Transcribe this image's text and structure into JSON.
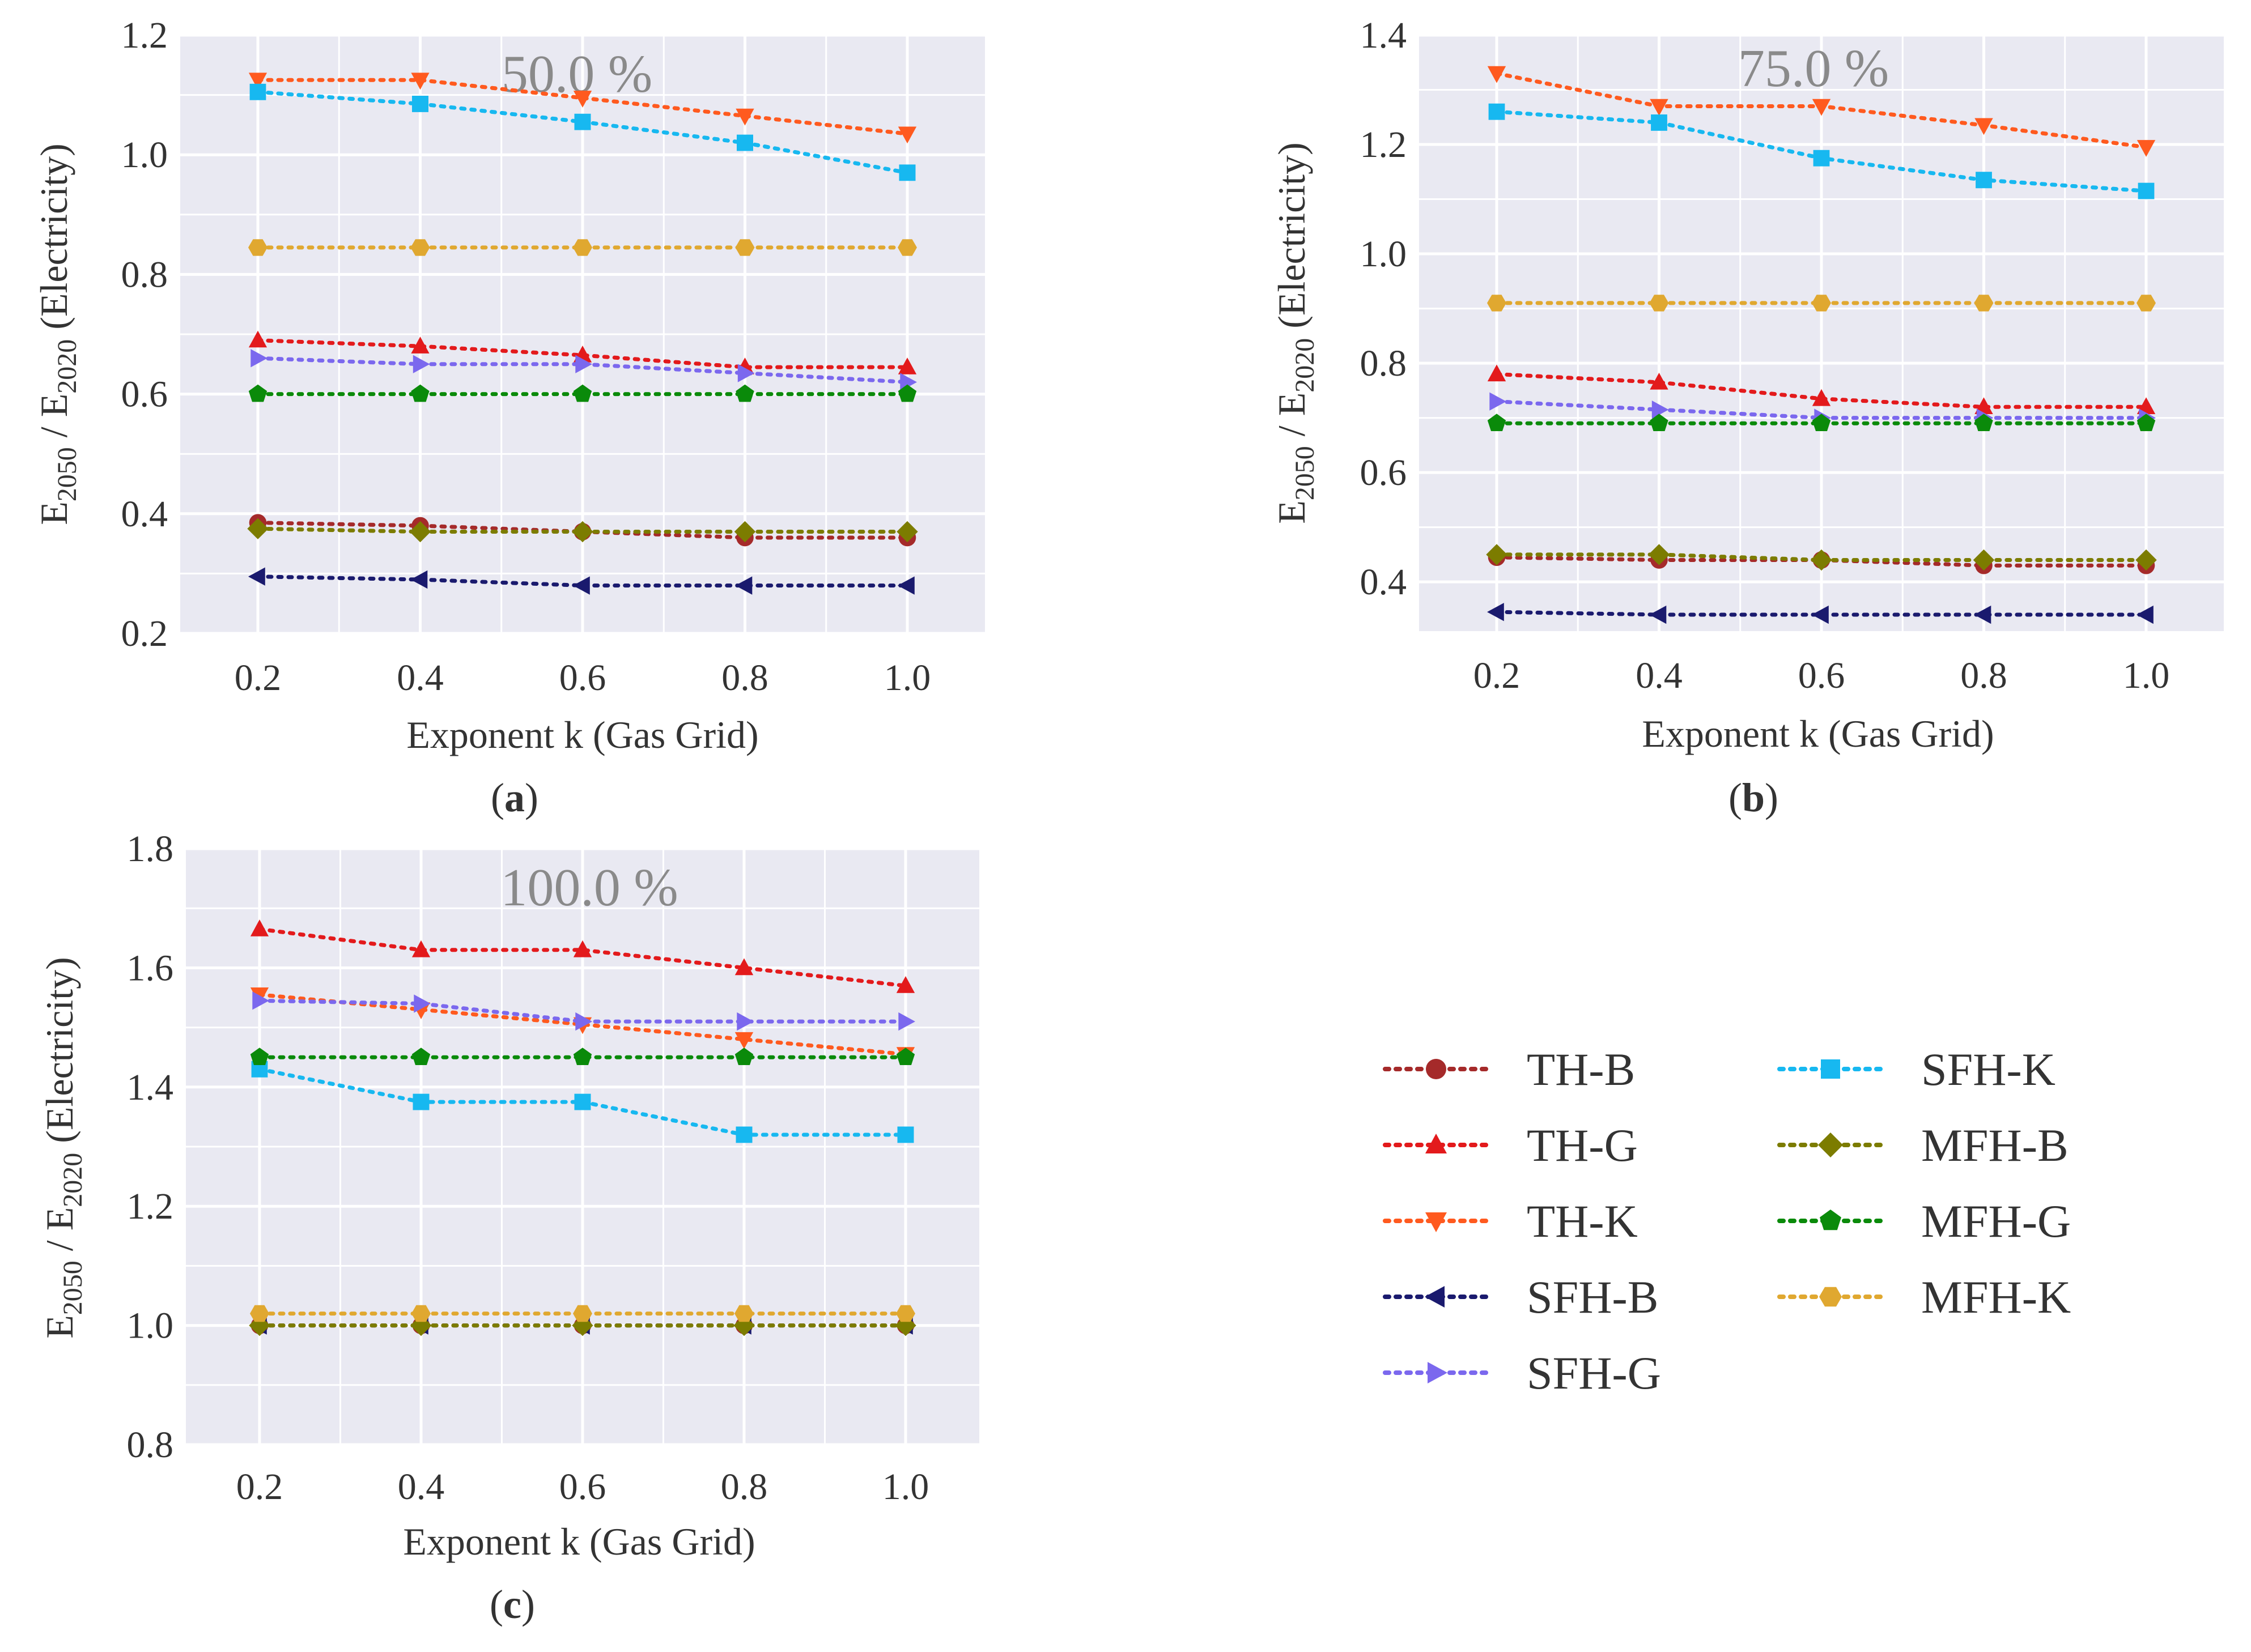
{
  "chart_data": [
    {
      "type": "line",
      "panel": "a",
      "annotation": "50.0 %",
      "xlabel": "Exponent k (Gas Grid)",
      "ylabel": {
        "prefix": "E",
        "sub1": "2050",
        "mid": " / E",
        "sub2": "2020",
        "suffix": " (Electricity)"
      },
      "x": [
        0.2,
        0.4,
        0.6,
        0.8,
        1.0
      ],
      "x_ticks": [
        "0.2",
        "0.4",
        "0.6",
        "0.8",
        "1.0"
      ],
      "ylim": [
        0.2,
        1.2
      ],
      "y_ticks": [
        0.2,
        0.4,
        0.6,
        0.8,
        1.0,
        1.2
      ],
      "y_tick_labels": [
        "0.2",
        "0.4",
        "0.6",
        "0.8",
        "1.0",
        "1.2"
      ],
      "series": [
        {
          "name": "TH-B",
          "values": [
            0.385,
            0.38,
            0.37,
            0.36,
            0.36
          ]
        },
        {
          "name": "TH-G",
          "values": [
            0.69,
            0.68,
            0.665,
            0.645,
            0.645
          ]
        },
        {
          "name": "TH-K",
          "values": [
            1.125,
            1.125,
            1.095,
            1.065,
            1.035
          ]
        },
        {
          "name": "SFH-B",
          "values": [
            0.295,
            0.29,
            0.28,
            0.28,
            0.28
          ]
        },
        {
          "name": "SFH-G",
          "values": [
            0.66,
            0.65,
            0.65,
            0.635,
            0.62
          ]
        },
        {
          "name": "SFH-K",
          "values": [
            1.105,
            1.085,
            1.055,
            1.02,
            0.97
          ]
        },
        {
          "name": "MFH-B",
          "values": [
            0.375,
            0.37,
            0.37,
            0.37,
            0.37
          ]
        },
        {
          "name": "MFH-G",
          "values": [
            0.6,
            0.6,
            0.6,
            0.6,
            0.6
          ]
        },
        {
          "name": "MFH-K",
          "values": [
            0.845,
            0.845,
            0.845,
            0.845,
            0.845
          ]
        }
      ]
    },
    {
      "type": "line",
      "panel": "b",
      "annotation": "75.0 %",
      "xlabel": "Exponent k (Gas Grid)",
      "ylabel": {
        "prefix": "E",
        "sub1": "2050",
        "mid": " / E",
        "sub2": "2020",
        "suffix": " (Electricity)"
      },
      "x": [
        0.2,
        0.4,
        0.6,
        0.8,
        1.0
      ],
      "x_ticks": [
        "0.2",
        "0.4",
        "0.6",
        "0.8",
        "1.0"
      ],
      "ylim": [
        0.31,
        1.4
      ],
      "y_ticks": [
        0.4,
        0.6,
        0.8,
        1.0,
        1.2,
        1.4
      ],
      "y_tick_labels": [
        "0.4",
        "0.6",
        "0.8",
        "1.0",
        "1.2",
        "1.4"
      ],
      "series": [
        {
          "name": "TH-B",
          "values": [
            0.445,
            0.44,
            0.44,
            0.43,
            0.43
          ]
        },
        {
          "name": "TH-G",
          "values": [
            0.78,
            0.765,
            0.735,
            0.72,
            0.72
          ]
        },
        {
          "name": "TH-K",
          "values": [
            1.33,
            1.27,
            1.27,
            1.235,
            1.195
          ]
        },
        {
          "name": "SFH-B",
          "values": [
            0.345,
            0.34,
            0.34,
            0.34,
            0.34
          ]
        },
        {
          "name": "SFH-G",
          "values": [
            0.73,
            0.715,
            0.7,
            0.7,
            0.7
          ]
        },
        {
          "name": "SFH-K",
          "values": [
            1.26,
            1.24,
            1.175,
            1.135,
            1.115
          ]
        },
        {
          "name": "MFH-B",
          "values": [
            0.45,
            0.45,
            0.44,
            0.44,
            0.44
          ]
        },
        {
          "name": "MFH-G",
          "values": [
            0.69,
            0.69,
            0.69,
            0.69,
            0.69
          ]
        },
        {
          "name": "MFH-K",
          "values": [
            0.91,
            0.91,
            0.91,
            0.91,
            0.91
          ]
        }
      ]
    },
    {
      "type": "line",
      "panel": "c",
      "annotation": "100.0 %",
      "xlabel": "Exponent k (Gas Grid)",
      "ylabel": {
        "prefix": "E",
        "sub1": "2050",
        "mid": " / E",
        "sub2": "2020",
        "suffix": " (Electricity)"
      },
      "x": [
        0.2,
        0.4,
        0.6,
        0.8,
        1.0
      ],
      "x_ticks": [
        "0.2",
        "0.4",
        "0.6",
        "0.8",
        "1.0"
      ],
      "ylim": [
        0.8,
        1.8
      ],
      "y_ticks": [
        0.8,
        1.0,
        1.2,
        1.4,
        1.6,
        1.8
      ],
      "y_tick_labels": [
        "0.8",
        "1.0",
        "1.2",
        "1.4",
        "1.6",
        "1.8"
      ],
      "series": [
        {
          "name": "TH-B",
          "values": [
            1.0,
            1.0,
            1.0,
            1.0,
            1.0
          ]
        },
        {
          "name": "TH-G",
          "values": [
            1.665,
            1.63,
            1.63,
            1.6,
            1.57
          ]
        },
        {
          "name": "TH-K",
          "values": [
            1.555,
            1.53,
            1.505,
            1.48,
            1.455
          ]
        },
        {
          "name": "SFH-B",
          "values": [
            1.0,
            1.0,
            1.0,
            1.0,
            1.0
          ]
        },
        {
          "name": "SFH-G",
          "values": [
            1.545,
            1.54,
            1.51,
            1.51,
            1.51
          ]
        },
        {
          "name": "SFH-K",
          "values": [
            1.43,
            1.375,
            1.375,
            1.32,
            1.32
          ]
        },
        {
          "name": "MFH-B",
          "values": [
            1.0,
            1.0,
            1.0,
            1.0,
            1.0
          ]
        },
        {
          "name": "MFH-G",
          "values": [
            1.45,
            1.45,
            1.45,
            1.45,
            1.45
          ]
        },
        {
          "name": "MFH-K",
          "values": [
            1.02,
            1.02,
            1.02,
            1.02,
            1.02
          ]
        }
      ]
    }
  ],
  "legend": {
    "position": "lower-right",
    "entries": [
      {
        "name": "TH-B",
        "color": "#a52a2a",
        "marker": "circle"
      },
      {
        "name": "TH-G",
        "color": "#e31a1c",
        "marker": "triangle-up"
      },
      {
        "name": "TH-K",
        "color": "#ff5a1f",
        "marker": "triangle-down"
      },
      {
        "name": "SFH-B",
        "color": "#1a1a6e",
        "marker": "triangle-left"
      },
      {
        "name": "SFH-G",
        "color": "#7b68ee",
        "marker": "triangle-right"
      },
      {
        "name": "SFH-K",
        "color": "#17b8f0",
        "marker": "square"
      },
      {
        "name": "MFH-B",
        "color": "#7c7c00",
        "marker": "diamond"
      },
      {
        "name": "MFH-G",
        "color": "#0a8a0a",
        "marker": "pentagon"
      },
      {
        "name": "MFH-K",
        "color": "#e0a830",
        "marker": "hexagon"
      }
    ]
  },
  "colors": {
    "plot_background": "#e9e9f2",
    "grid": "#ffffff"
  }
}
